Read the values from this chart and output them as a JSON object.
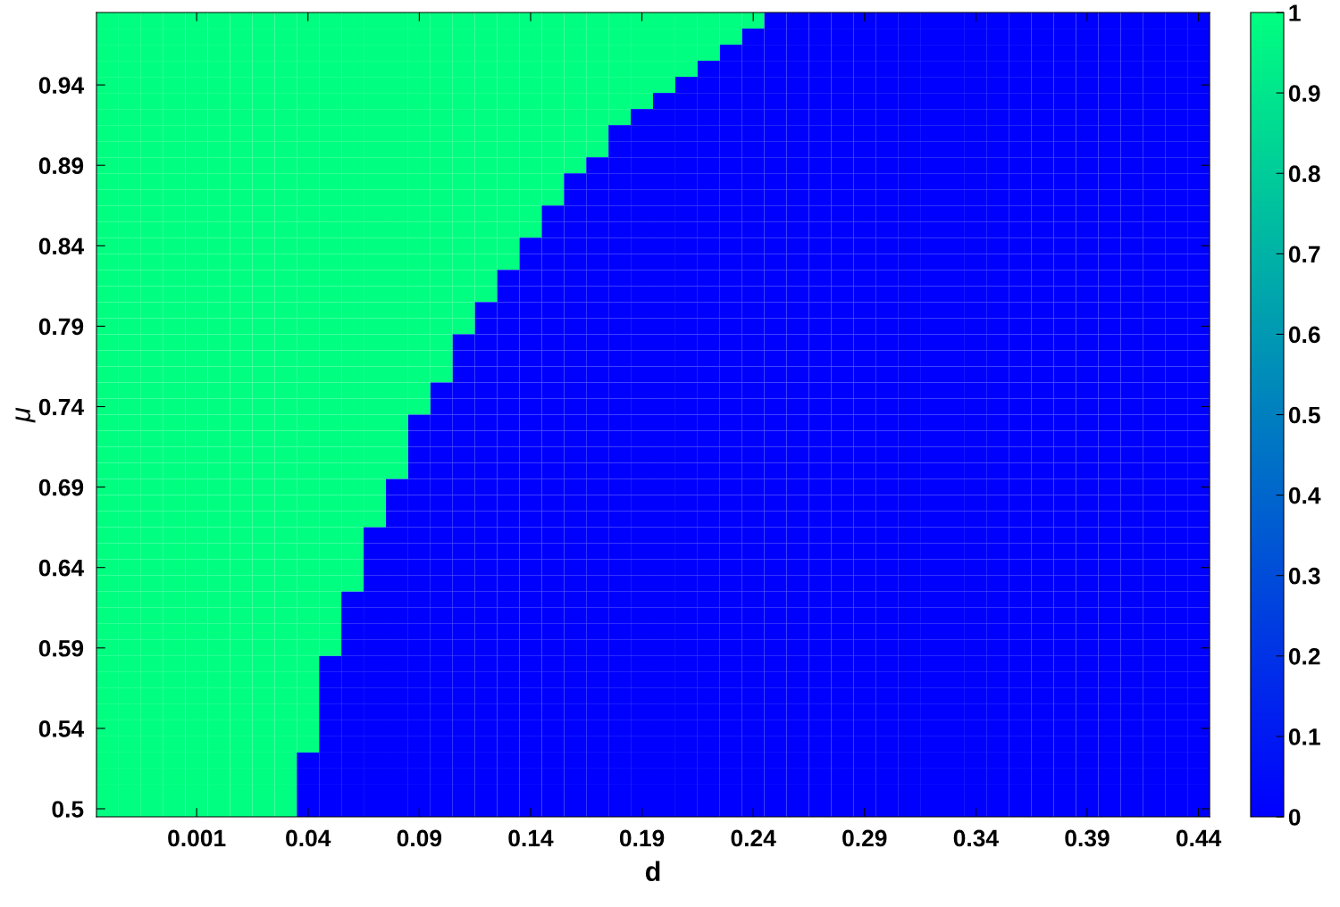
{
  "chart_data": {
    "type": "heatmap",
    "xlabel": "d",
    "ylabel": "μ",
    "categories": [
      null,
      null,
      null,
      null,
      "0.001",
      null,
      null,
      null,
      null,
      "0.04",
      null,
      null,
      null,
      null,
      "0.09",
      null,
      null,
      null,
      null,
      "0.14",
      null,
      null,
      null,
      null,
      "0.19",
      null,
      null,
      null,
      null,
      "0.24",
      null,
      null,
      null,
      null,
      "0.29",
      null,
      null,
      null,
      null,
      "0.34",
      null,
      null,
      null,
      null,
      "0.39",
      null,
      null,
      null,
      null,
      "0.44"
    ],
    "y_categories": [
      null,
      null,
      null,
      null,
      "0.94",
      null,
      null,
      null,
      null,
      "0.89",
      null,
      null,
      null,
      null,
      "0.84",
      null,
      null,
      null,
      null,
      "0.79",
      null,
      null,
      null,
      null,
      "0.74",
      null,
      null,
      null,
      null,
      "0.69",
      null,
      null,
      null,
      null,
      "0.64",
      null,
      null,
      null,
      null,
      "0.59",
      null,
      null,
      null,
      null,
      "0.54",
      null,
      null,
      null,
      null,
      "0.5"
    ],
    "colors": [
      "#0000ff",
      "#00ff80"
    ],
    "clim": [
      0,
      1
    ],
    "cticks": [
      0,
      0.1,
      0.2,
      0.3,
      0.4,
      0.5,
      0.6,
      0.7,
      0.8,
      0.9,
      1
    ],
    "cells": [
      [
        1,
        1,
        1,
        1,
        1,
        1,
        1,
        1,
        1,
        1,
        1,
        1,
        1,
        1,
        1,
        1,
        1,
        1,
        1,
        1,
        1,
        1,
        1,
        1,
        1,
        1,
        1,
        1,
        1,
        1,
        0,
        0,
        0,
        0,
        0,
        0,
        0,
        0,
        0,
        0,
        0,
        0,
        0,
        0,
        0,
        0,
        0,
        0,
        0,
        0
      ],
      [
        1,
        1,
        1,
        1,
        1,
        1,
        1,
        1,
        1,
        1,
        1,
        1,
        1,
        1,
        1,
        1,
        1,
        1,
        1,
        1,
        1,
        1,
        1,
        1,
        1,
        1,
        1,
        1,
        1,
        0,
        0,
        0,
        0,
        0,
        0,
        0,
        0,
        0,
        0,
        0,
        0,
        0,
        0,
        0,
        0,
        0,
        0,
        0,
        0,
        0
      ],
      [
        1,
        1,
        1,
        1,
        1,
        1,
        1,
        1,
        1,
        1,
        1,
        1,
        1,
        1,
        1,
        1,
        1,
        1,
        1,
        1,
        1,
        1,
        1,
        1,
        1,
        1,
        1,
        1,
        0,
        0,
        0,
        0,
        0,
        0,
        0,
        0,
        0,
        0,
        0,
        0,
        0,
        0,
        0,
        0,
        0,
        0,
        0,
        0,
        0,
        0
      ],
      [
        1,
        1,
        1,
        1,
        1,
        1,
        1,
        1,
        1,
        1,
        1,
        1,
        1,
        1,
        1,
        1,
        1,
        1,
        1,
        1,
        1,
        1,
        1,
        1,
        1,
        1,
        1,
        0,
        0,
        0,
        0,
        0,
        0,
        0,
        0,
        0,
        0,
        0,
        0,
        0,
        0,
        0,
        0,
        0,
        0,
        0,
        0,
        0,
        0,
        0
      ],
      [
        1,
        1,
        1,
        1,
        1,
        1,
        1,
        1,
        1,
        1,
        1,
        1,
        1,
        1,
        1,
        1,
        1,
        1,
        1,
        1,
        1,
        1,
        1,
        1,
        1,
        1,
        0,
        0,
        0,
        0,
        0,
        0,
        0,
        0,
        0,
        0,
        0,
        0,
        0,
        0,
        0,
        0,
        0,
        0,
        0,
        0,
        0,
        0,
        0,
        0
      ],
      [
        1,
        1,
        1,
        1,
        1,
        1,
        1,
        1,
        1,
        1,
        1,
        1,
        1,
        1,
        1,
        1,
        1,
        1,
        1,
        1,
        1,
        1,
        1,
        1,
        1,
        0,
        0,
        0,
        0,
        0,
        0,
        0,
        0,
        0,
        0,
        0,
        0,
        0,
        0,
        0,
        0,
        0,
        0,
        0,
        0,
        0,
        0,
        0,
        0,
        0
      ],
      [
        1,
        1,
        1,
        1,
        1,
        1,
        1,
        1,
        1,
        1,
        1,
        1,
        1,
        1,
        1,
        1,
        1,
        1,
        1,
        1,
        1,
        1,
        1,
        1,
        0,
        0,
        0,
        0,
        0,
        0,
        0,
        0,
        0,
        0,
        0,
        0,
        0,
        0,
        0,
        0,
        0,
        0,
        0,
        0,
        0,
        0,
        0,
        0,
        0,
        0
      ],
      [
        1,
        1,
        1,
        1,
        1,
        1,
        1,
        1,
        1,
        1,
        1,
        1,
        1,
        1,
        1,
        1,
        1,
        1,
        1,
        1,
        1,
        1,
        1,
        0,
        0,
        0,
        0,
        0,
        0,
        0,
        0,
        0,
        0,
        0,
        0,
        0,
        0,
        0,
        0,
        0,
        0,
        0,
        0,
        0,
        0,
        0,
        0,
        0,
        0,
        0
      ],
      [
        1,
        1,
        1,
        1,
        1,
        1,
        1,
        1,
        1,
        1,
        1,
        1,
        1,
        1,
        1,
        1,
        1,
        1,
        1,
        1,
        1,
        1,
        1,
        0,
        0,
        0,
        0,
        0,
        0,
        0,
        0,
        0,
        0,
        0,
        0,
        0,
        0,
        0,
        0,
        0,
        0,
        0,
        0,
        0,
        0,
        0,
        0,
        0,
        0,
        0
      ],
      [
        1,
        1,
        1,
        1,
        1,
        1,
        1,
        1,
        1,
        1,
        1,
        1,
        1,
        1,
        1,
        1,
        1,
        1,
        1,
        1,
        1,
        1,
        0,
        0,
        0,
        0,
        0,
        0,
        0,
        0,
        0,
        0,
        0,
        0,
        0,
        0,
        0,
        0,
        0,
        0,
        0,
        0,
        0,
        0,
        0,
        0,
        0,
        0,
        0,
        0
      ],
      [
        1,
        1,
        1,
        1,
        1,
        1,
        1,
        1,
        1,
        1,
        1,
        1,
        1,
        1,
        1,
        1,
        1,
        1,
        1,
        1,
        1,
        0,
        0,
        0,
        0,
        0,
        0,
        0,
        0,
        0,
        0,
        0,
        0,
        0,
        0,
        0,
        0,
        0,
        0,
        0,
        0,
        0,
        0,
        0,
        0,
        0,
        0,
        0,
        0,
        0
      ],
      [
        1,
        1,
        1,
        1,
        1,
        1,
        1,
        1,
        1,
        1,
        1,
        1,
        1,
        1,
        1,
        1,
        1,
        1,
        1,
        1,
        1,
        0,
        0,
        0,
        0,
        0,
        0,
        0,
        0,
        0,
        0,
        0,
        0,
        0,
        0,
        0,
        0,
        0,
        0,
        0,
        0,
        0,
        0,
        0,
        0,
        0,
        0,
        0,
        0,
        0
      ],
      [
        1,
        1,
        1,
        1,
        1,
        1,
        1,
        1,
        1,
        1,
        1,
        1,
        1,
        1,
        1,
        1,
        1,
        1,
        1,
        1,
        0,
        0,
        0,
        0,
        0,
        0,
        0,
        0,
        0,
        0,
        0,
        0,
        0,
        0,
        0,
        0,
        0,
        0,
        0,
        0,
        0,
        0,
        0,
        0,
        0,
        0,
        0,
        0,
        0,
        0
      ],
      [
        1,
        1,
        1,
        1,
        1,
        1,
        1,
        1,
        1,
        1,
        1,
        1,
        1,
        1,
        1,
        1,
        1,
        1,
        1,
        1,
        0,
        0,
        0,
        0,
        0,
        0,
        0,
        0,
        0,
        0,
        0,
        0,
        0,
        0,
        0,
        0,
        0,
        0,
        0,
        0,
        0,
        0,
        0,
        0,
        0,
        0,
        0,
        0,
        0,
        0
      ],
      [
        1,
        1,
        1,
        1,
        1,
        1,
        1,
        1,
        1,
        1,
        1,
        1,
        1,
        1,
        1,
        1,
        1,
        1,
        1,
        0,
        0,
        0,
        0,
        0,
        0,
        0,
        0,
        0,
        0,
        0,
        0,
        0,
        0,
        0,
        0,
        0,
        0,
        0,
        0,
        0,
        0,
        0,
        0,
        0,
        0,
        0,
        0,
        0,
        0,
        0
      ],
      [
        1,
        1,
        1,
        1,
        1,
        1,
        1,
        1,
        1,
        1,
        1,
        1,
        1,
        1,
        1,
        1,
        1,
        1,
        1,
        0,
        0,
        0,
        0,
        0,
        0,
        0,
        0,
        0,
        0,
        0,
        0,
        0,
        0,
        0,
        0,
        0,
        0,
        0,
        0,
        0,
        0,
        0,
        0,
        0,
        0,
        0,
        0,
        0,
        0,
        0
      ],
      [
        1,
        1,
        1,
        1,
        1,
        1,
        1,
        1,
        1,
        1,
        1,
        1,
        1,
        1,
        1,
        1,
        1,
        1,
        0,
        0,
        0,
        0,
        0,
        0,
        0,
        0,
        0,
        0,
        0,
        0,
        0,
        0,
        0,
        0,
        0,
        0,
        0,
        0,
        0,
        0,
        0,
        0,
        0,
        0,
        0,
        0,
        0,
        0,
        0,
        0
      ],
      [
        1,
        1,
        1,
        1,
        1,
        1,
        1,
        1,
        1,
        1,
        1,
        1,
        1,
        1,
        1,
        1,
        1,
        1,
        0,
        0,
        0,
        0,
        0,
        0,
        0,
        0,
        0,
        0,
        0,
        0,
        0,
        0,
        0,
        0,
        0,
        0,
        0,
        0,
        0,
        0,
        0,
        0,
        0,
        0,
        0,
        0,
        0,
        0,
        0,
        0
      ],
      [
        1,
        1,
        1,
        1,
        1,
        1,
        1,
        1,
        1,
        1,
        1,
        1,
        1,
        1,
        1,
        1,
        1,
        0,
        0,
        0,
        0,
        0,
        0,
        0,
        0,
        0,
        0,
        0,
        0,
        0,
        0,
        0,
        0,
        0,
        0,
        0,
        0,
        0,
        0,
        0,
        0,
        0,
        0,
        0,
        0,
        0,
        0,
        0,
        0,
        0
      ],
      [
        1,
        1,
        1,
        1,
        1,
        1,
        1,
        1,
        1,
        1,
        1,
        1,
        1,
        1,
        1,
        1,
        1,
        0,
        0,
        0,
        0,
        0,
        0,
        0,
        0,
        0,
        0,
        0,
        0,
        0,
        0,
        0,
        0,
        0,
        0,
        0,
        0,
        0,
        0,
        0,
        0,
        0,
        0,
        0,
        0,
        0,
        0,
        0,
        0,
        0
      ],
      [
        1,
        1,
        1,
        1,
        1,
        1,
        1,
        1,
        1,
        1,
        1,
        1,
        1,
        1,
        1,
        1,
        0,
        0,
        0,
        0,
        0,
        0,
        0,
        0,
        0,
        0,
        0,
        0,
        0,
        0,
        0,
        0,
        0,
        0,
        0,
        0,
        0,
        0,
        0,
        0,
        0,
        0,
        0,
        0,
        0,
        0,
        0,
        0,
        0,
        0
      ],
      [
        1,
        1,
        1,
        1,
        1,
        1,
        1,
        1,
        1,
        1,
        1,
        1,
        1,
        1,
        1,
        1,
        0,
        0,
        0,
        0,
        0,
        0,
        0,
        0,
        0,
        0,
        0,
        0,
        0,
        0,
        0,
        0,
        0,
        0,
        0,
        0,
        0,
        0,
        0,
        0,
        0,
        0,
        0,
        0,
        0,
        0,
        0,
        0,
        0,
        0
      ],
      [
        1,
        1,
        1,
        1,
        1,
        1,
        1,
        1,
        1,
        1,
        1,
        1,
        1,
        1,
        1,
        1,
        0,
        0,
        0,
        0,
        0,
        0,
        0,
        0,
        0,
        0,
        0,
        0,
        0,
        0,
        0,
        0,
        0,
        0,
        0,
        0,
        0,
        0,
        0,
        0,
        0,
        0,
        0,
        0,
        0,
        0,
        0,
        0,
        0,
        0
      ],
      [
        1,
        1,
        1,
        1,
        1,
        1,
        1,
        1,
        1,
        1,
        1,
        1,
        1,
        1,
        1,
        0,
        0,
        0,
        0,
        0,
        0,
        0,
        0,
        0,
        0,
        0,
        0,
        0,
        0,
        0,
        0,
        0,
        0,
        0,
        0,
        0,
        0,
        0,
        0,
        0,
        0,
        0,
        0,
        0,
        0,
        0,
        0,
        0,
        0,
        0
      ],
      [
        1,
        1,
        1,
        1,
        1,
        1,
        1,
        1,
        1,
        1,
        1,
        1,
        1,
        1,
        1,
        0,
        0,
        0,
        0,
        0,
        0,
        0,
        0,
        0,
        0,
        0,
        0,
        0,
        0,
        0,
        0,
        0,
        0,
        0,
        0,
        0,
        0,
        0,
        0,
        0,
        0,
        0,
        0,
        0,
        0,
        0,
        0,
        0,
        0,
        0
      ],
      [
        1,
        1,
        1,
        1,
        1,
        1,
        1,
        1,
        1,
        1,
        1,
        1,
        1,
        1,
        0,
        0,
        0,
        0,
        0,
        0,
        0,
        0,
        0,
        0,
        0,
        0,
        0,
        0,
        0,
        0,
        0,
        0,
        0,
        0,
        0,
        0,
        0,
        0,
        0,
        0,
        0,
        0,
        0,
        0,
        0,
        0,
        0,
        0,
        0,
        0
      ],
      [
        1,
        1,
        1,
        1,
        1,
        1,
        1,
        1,
        1,
        1,
        1,
        1,
        1,
        1,
        0,
        0,
        0,
        0,
        0,
        0,
        0,
        0,
        0,
        0,
        0,
        0,
        0,
        0,
        0,
        0,
        0,
        0,
        0,
        0,
        0,
        0,
        0,
        0,
        0,
        0,
        0,
        0,
        0,
        0,
        0,
        0,
        0,
        0,
        0,
        0
      ],
      [
        1,
        1,
        1,
        1,
        1,
        1,
        1,
        1,
        1,
        1,
        1,
        1,
        1,
        1,
        0,
        0,
        0,
        0,
        0,
        0,
        0,
        0,
        0,
        0,
        0,
        0,
        0,
        0,
        0,
        0,
        0,
        0,
        0,
        0,
        0,
        0,
        0,
        0,
        0,
        0,
        0,
        0,
        0,
        0,
        0,
        0,
        0,
        0,
        0,
        0
      ],
      [
        1,
        1,
        1,
        1,
        1,
        1,
        1,
        1,
        1,
        1,
        1,
        1,
        1,
        1,
        0,
        0,
        0,
        0,
        0,
        0,
        0,
        0,
        0,
        0,
        0,
        0,
        0,
        0,
        0,
        0,
        0,
        0,
        0,
        0,
        0,
        0,
        0,
        0,
        0,
        0,
        0,
        0,
        0,
        0,
        0,
        0,
        0,
        0,
        0,
        0
      ],
      [
        1,
        1,
        1,
        1,
        1,
        1,
        1,
        1,
        1,
        1,
        1,
        1,
        1,
        0,
        0,
        0,
        0,
        0,
        0,
        0,
        0,
        0,
        0,
        0,
        0,
        0,
        0,
        0,
        0,
        0,
        0,
        0,
        0,
        0,
        0,
        0,
        0,
        0,
        0,
        0,
        0,
        0,
        0,
        0,
        0,
        0,
        0,
        0,
        0,
        0
      ],
      [
        1,
        1,
        1,
        1,
        1,
        1,
        1,
        1,
        1,
        1,
        1,
        1,
        1,
        0,
        0,
        0,
        0,
        0,
        0,
        0,
        0,
        0,
        0,
        0,
        0,
        0,
        0,
        0,
        0,
        0,
        0,
        0,
        0,
        0,
        0,
        0,
        0,
        0,
        0,
        0,
        0,
        0,
        0,
        0,
        0,
        0,
        0,
        0,
        0,
        0
      ],
      [
        1,
        1,
        1,
        1,
        1,
        1,
        1,
        1,
        1,
        1,
        1,
        1,
        1,
        0,
        0,
        0,
        0,
        0,
        0,
        0,
        0,
        0,
        0,
        0,
        0,
        0,
        0,
        0,
        0,
        0,
        0,
        0,
        0,
        0,
        0,
        0,
        0,
        0,
        0,
        0,
        0,
        0,
        0,
        0,
        0,
        0,
        0,
        0,
        0,
        0
      ],
      [
        1,
        1,
        1,
        1,
        1,
        1,
        1,
        1,
        1,
        1,
        1,
        1,
        0,
        0,
        0,
        0,
        0,
        0,
        0,
        0,
        0,
        0,
        0,
        0,
        0,
        0,
        0,
        0,
        0,
        0,
        0,
        0,
        0,
        0,
        0,
        0,
        0,
        0,
        0,
        0,
        0,
        0,
        0,
        0,
        0,
        0,
        0,
        0,
        0,
        0
      ],
      [
        1,
        1,
        1,
        1,
        1,
        1,
        1,
        1,
        1,
        1,
        1,
        1,
        0,
        0,
        0,
        0,
        0,
        0,
        0,
        0,
        0,
        0,
        0,
        0,
        0,
        0,
        0,
        0,
        0,
        0,
        0,
        0,
        0,
        0,
        0,
        0,
        0,
        0,
        0,
        0,
        0,
        0,
        0,
        0,
        0,
        0,
        0,
        0,
        0,
        0
      ],
      [
        1,
        1,
        1,
        1,
        1,
        1,
        1,
        1,
        1,
        1,
        1,
        1,
        0,
        0,
        0,
        0,
        0,
        0,
        0,
        0,
        0,
        0,
        0,
        0,
        0,
        0,
        0,
        0,
        0,
        0,
        0,
        0,
        0,
        0,
        0,
        0,
        0,
        0,
        0,
        0,
        0,
        0,
        0,
        0,
        0,
        0,
        0,
        0,
        0,
        0
      ],
      [
        1,
        1,
        1,
        1,
        1,
        1,
        1,
        1,
        1,
        1,
        1,
        1,
        0,
        0,
        0,
        0,
        0,
        0,
        0,
        0,
        0,
        0,
        0,
        0,
        0,
        0,
        0,
        0,
        0,
        0,
        0,
        0,
        0,
        0,
        0,
        0,
        0,
        0,
        0,
        0,
        0,
        0,
        0,
        0,
        0,
        0,
        0,
        0,
        0,
        0
      ],
      [
        1,
        1,
        1,
        1,
        1,
        1,
        1,
        1,
        1,
        1,
        1,
        0,
        0,
        0,
        0,
        0,
        0,
        0,
        0,
        0,
        0,
        0,
        0,
        0,
        0,
        0,
        0,
        0,
        0,
        0,
        0,
        0,
        0,
        0,
        0,
        0,
        0,
        0,
        0,
        0,
        0,
        0,
        0,
        0,
        0,
        0,
        0,
        0,
        0,
        0
      ],
      [
        1,
        1,
        1,
        1,
        1,
        1,
        1,
        1,
        1,
        1,
        1,
        0,
        0,
        0,
        0,
        0,
        0,
        0,
        0,
        0,
        0,
        0,
        0,
        0,
        0,
        0,
        0,
        0,
        0,
        0,
        0,
        0,
        0,
        0,
        0,
        0,
        0,
        0,
        0,
        0,
        0,
        0,
        0,
        0,
        0,
        0,
        0,
        0,
        0,
        0
      ],
      [
        1,
        1,
        1,
        1,
        1,
        1,
        1,
        1,
        1,
        1,
        1,
        0,
        0,
        0,
        0,
        0,
        0,
        0,
        0,
        0,
        0,
        0,
        0,
        0,
        0,
        0,
        0,
        0,
        0,
        0,
        0,
        0,
        0,
        0,
        0,
        0,
        0,
        0,
        0,
        0,
        0,
        0,
        0,
        0,
        0,
        0,
        0,
        0,
        0,
        0
      ],
      [
        1,
        1,
        1,
        1,
        1,
        1,
        1,
        1,
        1,
        1,
        1,
        0,
        0,
        0,
        0,
        0,
        0,
        0,
        0,
        0,
        0,
        0,
        0,
        0,
        0,
        0,
        0,
        0,
        0,
        0,
        0,
        0,
        0,
        0,
        0,
        0,
        0,
        0,
        0,
        0,
        0,
        0,
        0,
        0,
        0,
        0,
        0,
        0,
        0,
        0
      ],
      [
        1,
        1,
        1,
        1,
        1,
        1,
        1,
        1,
        1,
        1,
        0,
        0,
        0,
        0,
        0,
        0,
        0,
        0,
        0,
        0,
        0,
        0,
        0,
        0,
        0,
        0,
        0,
        0,
        0,
        0,
        0,
        0,
        0,
        0,
        0,
        0,
        0,
        0,
        0,
        0,
        0,
        0,
        0,
        0,
        0,
        0,
        0,
        0,
        0,
        0
      ],
      [
        1,
        1,
        1,
        1,
        1,
        1,
        1,
        1,
        1,
        1,
        0,
        0,
        0,
        0,
        0,
        0,
        0,
        0,
        0,
        0,
        0,
        0,
        0,
        0,
        0,
        0,
        0,
        0,
        0,
        0,
        0,
        0,
        0,
        0,
        0,
        0,
        0,
        0,
        0,
        0,
        0,
        0,
        0,
        0,
        0,
        0,
        0,
        0,
        0,
        0
      ],
      [
        1,
        1,
        1,
        1,
        1,
        1,
        1,
        1,
        1,
        1,
        0,
        0,
        0,
        0,
        0,
        0,
        0,
        0,
        0,
        0,
        0,
        0,
        0,
        0,
        0,
        0,
        0,
        0,
        0,
        0,
        0,
        0,
        0,
        0,
        0,
        0,
        0,
        0,
        0,
        0,
        0,
        0,
        0,
        0,
        0,
        0,
        0,
        0,
        0,
        0
      ],
      [
        1,
        1,
        1,
        1,
        1,
        1,
        1,
        1,
        1,
        1,
        0,
        0,
        0,
        0,
        0,
        0,
        0,
        0,
        0,
        0,
        0,
        0,
        0,
        0,
        0,
        0,
        0,
        0,
        0,
        0,
        0,
        0,
        0,
        0,
        0,
        0,
        0,
        0,
        0,
        0,
        0,
        0,
        0,
        0,
        0,
        0,
        0,
        0,
        0,
        0
      ],
      [
        1,
        1,
        1,
        1,
        1,
        1,
        1,
        1,
        1,
        1,
        0,
        0,
        0,
        0,
        0,
        0,
        0,
        0,
        0,
        0,
        0,
        0,
        0,
        0,
        0,
        0,
        0,
        0,
        0,
        0,
        0,
        0,
        0,
        0,
        0,
        0,
        0,
        0,
        0,
        0,
        0,
        0,
        0,
        0,
        0,
        0,
        0,
        0,
        0,
        0
      ],
      [
        1,
        1,
        1,
        1,
        1,
        1,
        1,
        1,
        1,
        1,
        0,
        0,
        0,
        0,
        0,
        0,
        0,
        0,
        0,
        0,
        0,
        0,
        0,
        0,
        0,
        0,
        0,
        0,
        0,
        0,
        0,
        0,
        0,
        0,
        0,
        0,
        0,
        0,
        0,
        0,
        0,
        0,
        0,
        0,
        0,
        0,
        0,
        0,
        0,
        0
      ],
      [
        1,
        1,
        1,
        1,
        1,
        1,
        1,
        1,
        1,
        0,
        0,
        0,
        0,
        0,
        0,
        0,
        0,
        0,
        0,
        0,
        0,
        0,
        0,
        0,
        0,
        0,
        0,
        0,
        0,
        0,
        0,
        0,
        0,
        0,
        0,
        0,
        0,
        0,
        0,
        0,
        0,
        0,
        0,
        0,
        0,
        0,
        0,
        0,
        0,
        0
      ],
      [
        1,
        1,
        1,
        1,
        1,
        1,
        1,
        1,
        1,
        0,
        0,
        0,
        0,
        0,
        0,
        0,
        0,
        0,
        0,
        0,
        0,
        0,
        0,
        0,
        0,
        0,
        0,
        0,
        0,
        0,
        0,
        0,
        0,
        0,
        0,
        0,
        0,
        0,
        0,
        0,
        0,
        0,
        0,
        0,
        0,
        0,
        0,
        0,
        0,
        0
      ],
      [
        1,
        1,
        1,
        1,
        1,
        1,
        1,
        1,
        1,
        0,
        0,
        0,
        0,
        0,
        0,
        0,
        0,
        0,
        0,
        0,
        0,
        0,
        0,
        0,
        0,
        0,
        0,
        0,
        0,
        0,
        0,
        0,
        0,
        0,
        0,
        0,
        0,
        0,
        0,
        0,
        0,
        0,
        0,
        0,
        0,
        0,
        0,
        0,
        0,
        0
      ],
      [
        1,
        1,
        1,
        1,
        1,
        1,
        1,
        1,
        1,
        0,
        0,
        0,
        0,
        0,
        0,
        0,
        0,
        0,
        0,
        0,
        0,
        0,
        0,
        0,
        0,
        0,
        0,
        0,
        0,
        0,
        0,
        0,
        0,
        0,
        0,
        0,
        0,
        0,
        0,
        0,
        0,
        0,
        0,
        0,
        0,
        0,
        0,
        0,
        0,
        0
      ]
    ]
  }
}
